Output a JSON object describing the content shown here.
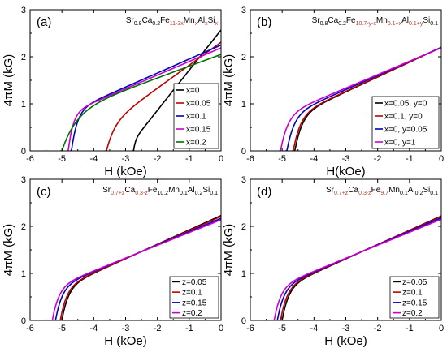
{
  "chart_data": [
    {
      "type": "line",
      "panel_label": "(a)",
      "formula": [
        {
          "t": "Sr",
          "s": "n",
          "red": false
        },
        {
          "t": "0.8",
          "s": "sub",
          "red": false
        },
        {
          "t": "Ca",
          "s": "n",
          "red": false
        },
        {
          "t": "0.2",
          "s": "sub",
          "red": false
        },
        {
          "t": "Fe",
          "s": "n",
          "red": false
        },
        {
          "t": "11-3x",
          "s": "sub",
          "red": true
        },
        {
          "t": "Mn",
          "s": "n",
          "red": false
        },
        {
          "t": "x",
          "s": "sub",
          "red": true
        },
        {
          "t": "Al",
          "s": "n",
          "red": false
        },
        {
          "t": "x",
          "s": "sub",
          "red": true
        },
        {
          "t": "Si",
          "s": "n",
          "red": false
        },
        {
          "t": "x",
          "s": "sub",
          "red": true
        }
      ],
      "xlabel": "H (kOe)",
      "ylabel": "4πM (kG)",
      "xlim": [
        -6,
        0
      ],
      "ylim": [
        0,
        3
      ],
      "xticks": [
        -6,
        -5,
        -4,
        -3,
        -2,
        -1,
        0
      ],
      "yticks": [
        0,
        1,
        2,
        3
      ],
      "legend_position": "bottom-right",
      "series": [
        {
          "name": "x=0",
          "color": "#000000",
          "Hc": -2.75,
          "Mr": 2.57,
          "soft": 0.06,
          "amp": 0.22
        },
        {
          "name": "x=0.05",
          "color": "#c00000",
          "Hc": -3.6,
          "Mr": 2.31,
          "soft": 0.25,
          "amp": 0.55
        },
        {
          "name": "x=0.1",
          "color": "#0000c0",
          "Hc": -4.7,
          "Mr": 2.25,
          "soft": 0.18,
          "amp": 0.85
        },
        {
          "name": "x=0.15",
          "color": "#cc00cc",
          "Hc": -4.8,
          "Mr": 2.19,
          "soft": 0.15,
          "amp": 0.8
        },
        {
          "name": "x=0.2",
          "color": "#007000",
          "Hc": -5.0,
          "Mr": 2.05,
          "soft": 0.45,
          "amp": 0.8
        }
      ]
    },
    {
      "type": "line",
      "panel_label": "(b)",
      "formula": [
        {
          "t": "Sr",
          "s": "n",
          "red": false
        },
        {
          "t": "0.8",
          "s": "sub",
          "red": false
        },
        {
          "t": "Ca",
          "s": "n",
          "red": false
        },
        {
          "t": "0.2",
          "s": "sub",
          "red": false
        },
        {
          "t": "Fe",
          "s": "n",
          "red": false
        },
        {
          "t": "10.7-y-x",
          "s": "sub",
          "red": true
        },
        {
          "t": "Mn",
          "s": "n",
          "red": false
        },
        {
          "t": "0.1+x",
          "s": "sub",
          "red": true
        },
        {
          "t": "Al",
          "s": "n",
          "red": false
        },
        {
          "t": "0.1+y",
          "s": "sub",
          "red": true
        },
        {
          "t": "Si",
          "s": "n",
          "red": false
        },
        {
          "t": "0.1",
          "s": "sub",
          "red": false
        }
      ],
      "xlabel": "H(kOe)",
      "ylabel": "4πM (kG)",
      "xlim": [
        -6,
        0
      ],
      "ylim": [
        0,
        3
      ],
      "xticks": [
        -6,
        -5,
        -4,
        -3,
        -2,
        -1,
        0
      ],
      "yticks": [
        0,
        1,
        2,
        3
      ],
      "legend_position": "bottom-right",
      "series": [
        {
          "name": "x=0.05, y=0",
          "color": "#000000",
          "Hc": -4.6,
          "Mr": 2.2,
          "soft": 0.22,
          "amp": 0.75
        },
        {
          "name": "x=0.1, y=0",
          "color": "#c00000",
          "Hc": -4.65,
          "Mr": 2.2,
          "soft": 0.22,
          "amp": 0.75
        },
        {
          "name": "x=0, y=0.05",
          "color": "#0000c0",
          "Hc": -4.85,
          "Mr": 2.2,
          "soft": 0.22,
          "amp": 0.75
        },
        {
          "name": "x=0, y=1",
          "color": "#cc00cc",
          "Hc": -5.05,
          "Mr": 2.19,
          "soft": 0.22,
          "amp": 0.75
        }
      ]
    },
    {
      "type": "line",
      "panel_label": "(c)",
      "formula": [
        {
          "t": "Sr",
          "s": "n",
          "red": false
        },
        {
          "t": "0.7+z",
          "s": "sub",
          "red": true
        },
        {
          "t": "Ca",
          "s": "n",
          "red": false
        },
        {
          "t": "0.3-z",
          "s": "sub",
          "red": true
        },
        {
          "t": "Fe",
          "s": "n",
          "red": false
        },
        {
          "t": "10.2",
          "s": "sub",
          "red": false
        },
        {
          "t": "Mn",
          "s": "n",
          "red": false
        },
        {
          "t": "0.1",
          "s": "sub",
          "red": false
        },
        {
          "t": "Al",
          "s": "n",
          "red": false
        },
        {
          "t": "0.2",
          "s": "sub",
          "red": false
        },
        {
          "t": "Si",
          "s": "n",
          "red": false
        },
        {
          "t": "0.1",
          "s": "sub",
          "red": false
        }
      ],
      "xlabel": "H (kOe)",
      "ylabel": "4πM (kG)",
      "xlim": [
        -6,
        0
      ],
      "ylim": [
        0,
        3
      ],
      "xticks": [
        -6,
        -5,
        -4,
        -3,
        -2,
        -1,
        0
      ],
      "yticks": [
        0,
        1,
        2,
        3
      ],
      "legend_position": "bottom-right",
      "series": [
        {
          "name": "z=0.05",
          "color": "#000000",
          "Hc": -5.0,
          "Mr": 2.23,
          "soft": 0.2,
          "amp": 0.7
        },
        {
          "name": "z=0.1",
          "color": "#c00000",
          "Hc": -5.05,
          "Mr": 2.21,
          "soft": 0.2,
          "amp": 0.7
        },
        {
          "name": "z=0.15",
          "color": "#0000c0",
          "Hc": -5.2,
          "Mr": 2.17,
          "soft": 0.2,
          "amp": 0.7
        },
        {
          "name": "z=0.2",
          "color": "#cc00cc",
          "Hc": -5.3,
          "Mr": 2.14,
          "soft": 0.2,
          "amp": 0.7
        }
      ]
    },
    {
      "type": "line",
      "panel_label": "(d)",
      "formula": [
        {
          "t": "Sr",
          "s": "n",
          "red": false
        },
        {
          "t": "0.7+z",
          "s": "sub",
          "red": true
        },
        {
          "t": "Ca",
          "s": "n",
          "red": false
        },
        {
          "t": "0.3-z",
          "s": "sub",
          "red": true
        },
        {
          "t": "Fe",
          "s": "n",
          "red": false
        },
        {
          "t": "9.7",
          "s": "sub",
          "red": true
        },
        {
          "t": "Mn",
          "s": "n",
          "red": false
        },
        {
          "t": "0.1",
          "s": "sub",
          "red": false
        },
        {
          "t": "Al",
          "s": "n",
          "red": false
        },
        {
          "t": "0.2",
          "s": "sub",
          "red": false
        },
        {
          "t": "Si",
          "s": "n",
          "red": false
        },
        {
          "t": "0.1",
          "s": "sub",
          "red": false
        }
      ],
      "xlabel": "H (kOe)",
      "ylabel": "4πM (kG)",
      "xlim": [
        -6,
        0
      ],
      "ylim": [
        0,
        3
      ],
      "xticks": [
        -6,
        -5,
        -4,
        -3,
        -2,
        -1,
        0
      ],
      "yticks": [
        0,
        1,
        2,
        3
      ],
      "legend_position": "bottom-right",
      "series": [
        {
          "name": "z=0.05",
          "color": "#000000",
          "Hc": -5.0,
          "Mr": 2.22,
          "soft": 0.2,
          "amp": 0.7
        },
        {
          "name": "z=0.1",
          "color": "#c00000",
          "Hc": -5.05,
          "Mr": 2.21,
          "soft": 0.2,
          "amp": 0.7
        },
        {
          "name": "z=0.15",
          "color": "#0000c0",
          "Hc": -5.15,
          "Mr": 2.18,
          "soft": 0.2,
          "amp": 0.7
        },
        {
          "name": "z=0.2",
          "color": "#cc00cc",
          "Hc": -5.25,
          "Mr": 2.15,
          "soft": 0.2,
          "amp": 0.7
        }
      ]
    }
  ]
}
